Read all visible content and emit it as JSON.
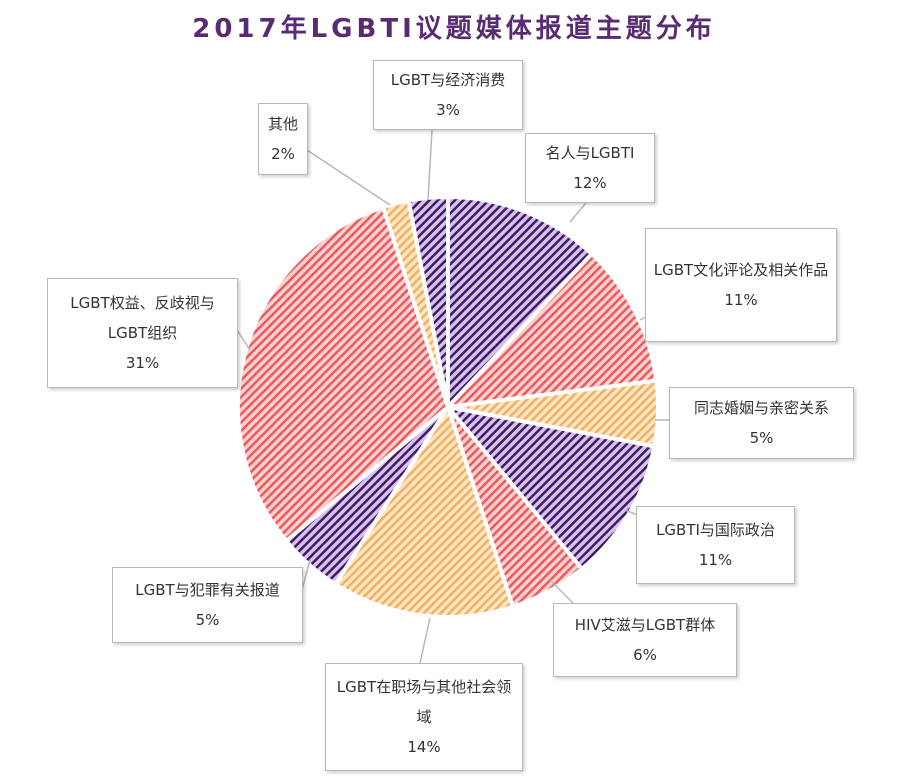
{
  "chart_data": {
    "type": "pie",
    "title": "2017年LGBTI议题媒体报道主题分布",
    "start": "top, clockwise",
    "slices": [
      {
        "label": "名人与LGBTI",
        "value": 12,
        "pct": "12%",
        "color": "#a77fd6"
      },
      {
        "label": "LGBT文化评论及相关作品",
        "value": 11,
        "pct": "11%",
        "color": "#f0797a"
      },
      {
        "label": "同志婚姻与亲密关系",
        "value": 5,
        "pct": "5%",
        "color": "#f7c27e"
      },
      {
        "label": "LGBTI与国际政治",
        "value": 11,
        "pct": "11%",
        "color": "#a77fd6"
      },
      {
        "label": "HIV艾滋与LGBT群体",
        "value": 6,
        "pct": "6%",
        "color": "#f0797a"
      },
      {
        "label": "LGBT在职场与其他社会领域",
        "value": 14,
        "pct": "14%",
        "color": "#f7c27e"
      },
      {
        "label": "LGBT与犯罪有关报道",
        "value": 5,
        "pct": "5%",
        "color": "#a77fd6"
      },
      {
        "label": "LGBT权益、反歧视与LGBT组织",
        "value": 31,
        "pct": "31%",
        "color": "#f0797a"
      },
      {
        "label": "其他",
        "value": 2,
        "pct": "2%",
        "color": "#f7c27e"
      },
      {
        "label": "LGBT与经济消费",
        "value": 3,
        "pct": "3%",
        "color": "#a77fd6"
      }
    ]
  }
}
